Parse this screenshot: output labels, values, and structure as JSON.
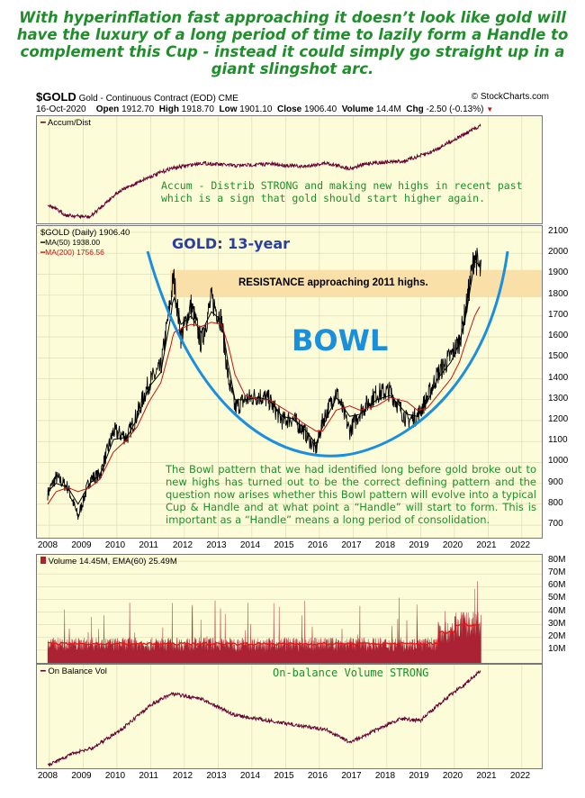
{
  "headline": "With hyperinflation fast approaching it doesn’t look like gold will have the luxury of a long period of time to lazily form a Handle to complement this Cup - instead it could simply go straight up in a giant slingshot arc.",
  "header": {
    "symbol": "$GOLD",
    "description": "Gold - Continuous Contract (EOD)",
    "exchange": "CME",
    "date": "16-Oct-2020",
    "open_label": "Open",
    "open": "1912.70",
    "high_label": "High",
    "high": "1918.70",
    "low_label": "Low",
    "low": "1901.10",
    "close_label": "Close",
    "close": "1906.40",
    "volume_label": "Volume",
    "volume": "14.4M",
    "chg_label": "Chg",
    "chg": "-2.50 (-0.13%)",
    "brand": "© StockCharts.com"
  },
  "annotations": {
    "accum": "Accum - Distrib STRONG and making new highs in recent past which is a sign that gold should start higher again.",
    "gold13": "GOLD: 13-year",
    "resistance": "RESISTANCE approaching 2011 highs.",
    "bowl": "BOWL",
    "bowl_note": "The Bowl pattern that we had identified long before gold broke out to new highs has turned out to be the correct defining pattern and the question now arises whether this Bowl pattern will evolve into a typical Cup & Handle and at what point a “Handle” will start to form. This is important as a “Handle” means a long period of consolidation.",
    "obv": "On-balance Volume STRONG"
  },
  "colors": {
    "price": "#000000",
    "ma50": "#000000",
    "ma200": "#cc1111",
    "indicator": "#660033",
    "volume": "#aa2233",
    "volume_ema": "#ee1111",
    "bowl": "#1a8fdc",
    "panel_bg": "#fcfcd8",
    "resistance_band": "#f9dfa8",
    "headline": "#1e8f2a"
  },
  "chart_data": [
    {
      "type": "line",
      "name": "accum-dist-panel",
      "legend": [
        "Accum/Dist"
      ],
      "x_ticks": [
        "2008",
        "2009",
        "2010",
        "2011",
        "2012",
        "2013",
        "2014",
        "2015",
        "2016",
        "2017",
        "2018",
        "2019",
        "2020",
        "2021",
        "2022"
      ]
    },
    {
      "type": "line",
      "name": "price-panel",
      "legend": [
        "$GOLD (Daily) 1906.40",
        "MA(50) 1938.00",
        "MA(200) 1756.56"
      ],
      "y_ticks": [
        700,
        800,
        900,
        1000,
        1100,
        1200,
        1300,
        1400,
        1500,
        1600,
        1700,
        1800,
        1900,
        2000,
        2100
      ],
      "ylim": [
        640,
        2130
      ],
      "x_ticks": [
        "2008",
        "2009",
        "2010",
        "2011",
        "2012",
        "2013",
        "2014",
        "2015",
        "2016",
        "2017",
        "2018",
        "2019",
        "2020",
        "2021",
        "2022"
      ],
      "x": [
        2007.95,
        2008.2,
        2008.55,
        2008.85,
        2009.2,
        2009.5,
        2009.9,
        2010.3,
        2010.6,
        2010.95,
        2011.3,
        2011.6,
        2011.68,
        2011.9,
        2012.2,
        2012.5,
        2012.8,
        2013.1,
        2013.3,
        2013.5,
        2013.8,
        2014.2,
        2014.5,
        2014.9,
        2015.2,
        2015.5,
        2015.9,
        2016.1,
        2016.5,
        2016.9,
        2017.2,
        2017.7,
        2018.1,
        2018.6,
        2018.9,
        2019.2,
        2019.5,
        2019.9,
        2020.15,
        2020.35,
        2020.6,
        2020.7,
        2020.79
      ],
      "series": [
        {
          "name": "$GOLD (Daily)",
          "values": [
            850,
            930,
            880,
            740,
            920,
            940,
            1150,
            1120,
            1230,
            1380,
            1450,
            1780,
            1890,
            1600,
            1750,
            1570,
            1780,
            1680,
            1400,
            1260,
            1300,
            1320,
            1300,
            1200,
            1210,
            1160,
            1060,
            1200,
            1340,
            1150,
            1240,
            1330,
            1340,
            1200,
            1220,
            1310,
            1420,
            1510,
            1580,
            1740,
            2000,
            1940,
            1906
          ]
        },
        {
          "name": "MA(50)",
          "values": [
            860,
            900,
            880,
            800,
            900,
            940,
            1110,
            1120,
            1210,
            1360,
            1430,
            1700,
            1800,
            1660,
            1700,
            1620,
            1720,
            1680,
            1470,
            1300,
            1300,
            1310,
            1300,
            1220,
            1210,
            1170,
            1090,
            1170,
            1310,
            1220,
            1230,
            1300,
            1320,
            1230,
            1220,
            1290,
            1400,
            1480,
            1570,
            1710,
            1960,
            1950,
            1938
          ]
        },
        {
          "name": "MA(200)",
          "values": [
            800,
            860,
            880,
            860,
            880,
            920,
            1050,
            1110,
            1170,
            1290,
            1380,
            1560,
            1620,
            1640,
            1660,
            1650,
            1670,
            1660,
            1560,
            1420,
            1320,
            1300,
            1300,
            1260,
            1230,
            1190,
            1150,
            1150,
            1250,
            1270,
            1250,
            1270,
            1310,
            1290,
            1250,
            1260,
            1320,
            1400,
            1480,
            1580,
            1700,
            1730,
            1756
          ]
        }
      ],
      "resistance_band": [
        1790,
        1920
      ]
    },
    {
      "type": "bar",
      "name": "volume-panel",
      "legend": [
        "Volume 14.45M, EMA(60) 25.49M"
      ],
      "y_ticks": [
        "10M",
        "20M",
        "30M",
        "40M",
        "50M",
        "60M",
        "70M",
        "80M"
      ]
    },
    {
      "type": "line",
      "name": "obv-panel",
      "legend": [
        "On Balance Vol"
      ],
      "x_ticks": [
        "2008",
        "2009",
        "2010",
        "2011",
        "2012",
        "2013",
        "2014",
        "2015",
        "2016",
        "2017",
        "2018",
        "2019",
        "2020",
        "2021",
        "2022"
      ]
    }
  ]
}
